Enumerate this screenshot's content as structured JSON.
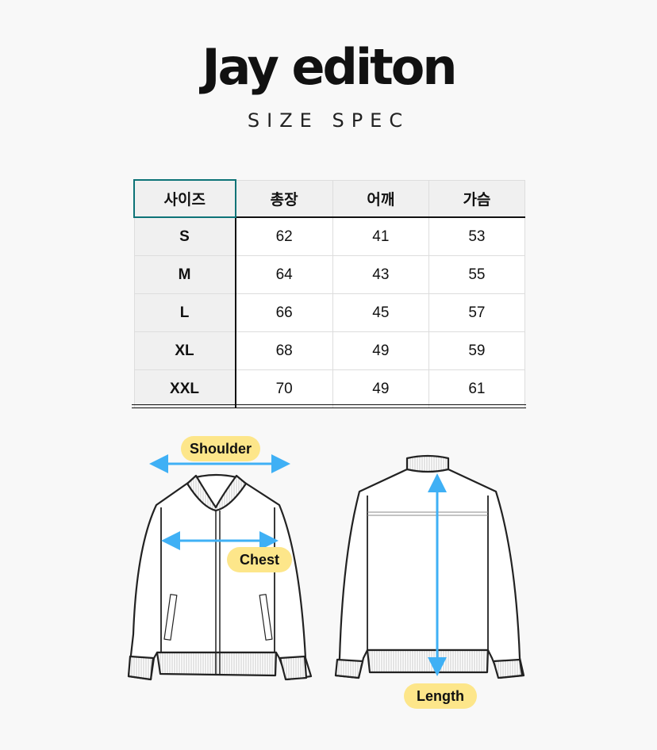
{
  "brand": {
    "title": "Jay editon",
    "subtitle": "SIZE SPEC"
  },
  "table": {
    "headers": [
      "사이즈",
      "총장",
      "어깨",
      "가슴"
    ],
    "rows": [
      [
        "S",
        "62",
        "41",
        "53"
      ],
      [
        "M",
        "64",
        "43",
        "55"
      ],
      [
        "L",
        "66",
        "45",
        "57"
      ],
      [
        "XL",
        "68",
        "49",
        "59"
      ],
      [
        "XXL",
        "70",
        "49",
        "61"
      ]
    ]
  },
  "diagram": {
    "shoulder": "Shoulder",
    "chest": "Chest",
    "length": "Length",
    "arrow_color": "#3fb0f5",
    "label_color": "#fde68a"
  }
}
